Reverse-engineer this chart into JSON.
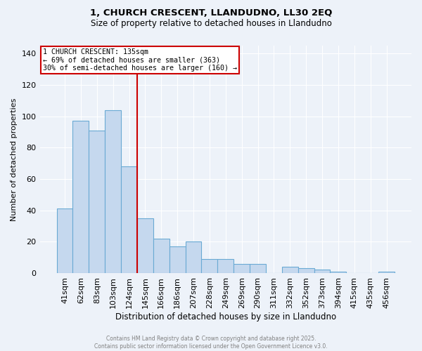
{
  "title_line1": "1, CHURCH CRESCENT, LLANDUDNO, LL30 2EQ",
  "title_line2": "Size of property relative to detached houses in Llandudno",
  "xlabel": "Distribution of detached houses by size in Llandudno",
  "ylabel": "Number of detached properties",
  "annotation_line1": "1 CHURCH CRESCENT: 135sqm",
  "annotation_line2": "← 69% of detached houses are smaller (363)",
  "annotation_line3": "30% of semi-detached houses are larger (160) →",
  "bar_color": "#c5d8ee",
  "bar_edge_color": "#6aaad4",
  "vline_color": "#cc0000",
  "annotation_box_color": "#cc0000",
  "background_color": "#edf2f9",
  "categories": [
    "41sqm",
    "62sqm",
    "83sqm",
    "103sqm",
    "124sqm",
    "145sqm",
    "166sqm",
    "186sqm",
    "207sqm",
    "228sqm",
    "249sqm",
    "269sqm",
    "290sqm",
    "311sqm",
    "332sqm",
    "352sqm",
    "373sqm",
    "394sqm",
    "415sqm",
    "435sqm",
    "456sqm"
  ],
  "values": [
    41,
    97,
    91,
    104,
    68,
    35,
    22,
    17,
    20,
    9,
    9,
    6,
    6,
    0,
    4,
    3,
    2,
    1,
    0,
    0,
    1
  ],
  "ylim": [
    0,
    145
  ],
  "yticks": [
    0,
    20,
    40,
    60,
    80,
    100,
    120,
    140
  ],
  "footer_line1": "Contains HM Land Registry data © Crown copyright and database right 2025.",
  "footer_line2": "Contains public sector information licensed under the Open Government Licence v3.0."
}
